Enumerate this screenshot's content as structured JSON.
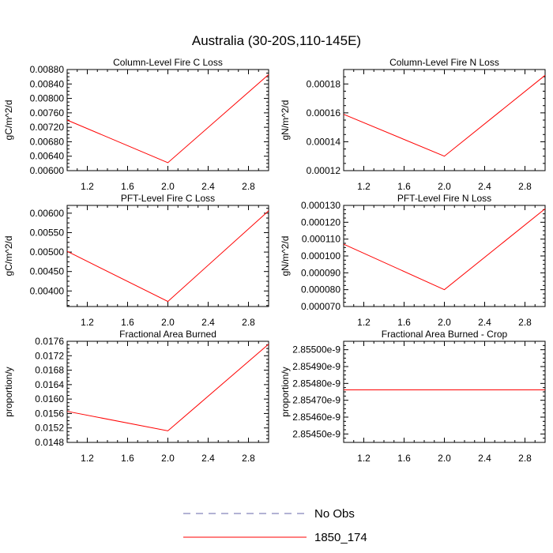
{
  "title": "Australia (30-20S,110-145E)",
  "colors": {
    "model": "#ff0000",
    "obs": "#6666aa",
    "axis": "#000000"
  },
  "legend": {
    "items": [
      "No Obs",
      "1850_174"
    ]
  },
  "chart_data": [
    {
      "type": "line",
      "title": "Column-Level Fire C Loss",
      "ylabel": "gC/m^2/d",
      "xlim": [
        1,
        3
      ],
      "xticks": [
        "1.2",
        "1.6",
        "2.0",
        "2.4",
        "2.8"
      ],
      "ylim": [
        0.006,
        0.0088
      ],
      "yticks": [
        "0.00600",
        "0.00640",
        "0.00680",
        "0.00720",
        "0.00760",
        "0.00800",
        "0.00840",
        "0.00880"
      ],
      "series": [
        {
          "name": "1850_174",
          "x": [
            1,
            2,
            3
          ],
          "y": [
            0.0074,
            0.00622,
            0.00866
          ]
        }
      ]
    },
    {
      "type": "line",
      "title": "Column-Level Fire N Loss",
      "ylabel": "gN/m^2/d",
      "xlim": [
        1,
        3
      ],
      "xticks": [
        "1.2",
        "1.6",
        "2.0",
        "2.4",
        "2.8"
      ],
      "ylim": [
        0.00012,
        0.00019
      ],
      "yticks": [
        "0.00012",
        "0.00014",
        "0.00016",
        "0.00018"
      ],
      "series": [
        {
          "name": "1850_174",
          "x": [
            1,
            2,
            3
          ],
          "y": [
            0.000159,
            0.00013,
            0.000186
          ]
        }
      ]
    },
    {
      "type": "line",
      "title": "PFT-Level Fire C Loss",
      "ylabel": "gC/m^2/d",
      "xlim": [
        1,
        3
      ],
      "xticks": [
        "1.2",
        "1.6",
        "2.0",
        "2.4",
        "2.8"
      ],
      "ylim": [
        0.0036,
        0.0062
      ],
      "yticks": [
        "0.00400",
        "0.00450",
        "0.00500",
        "0.00550",
        "0.00600"
      ],
      "series": [
        {
          "name": "1850_174",
          "x": [
            1,
            2,
            3
          ],
          "y": [
            0.00502,
            0.00373,
            0.00606
          ]
        }
      ]
    },
    {
      "type": "line",
      "title": "PFT-Level Fire N Loss",
      "ylabel": "gN/m^2/d",
      "xlim": [
        1,
        3
      ],
      "xticks": [
        "1.2",
        "1.6",
        "2.0",
        "2.4",
        "2.8"
      ],
      "ylim": [
        7e-05,
        0.00013
      ],
      "yticks": [
        "0.000070",
        "0.000080",
        "0.000090",
        "0.000100",
        "0.000110",
        "0.000120",
        "0.000130"
      ],
      "series": [
        {
          "name": "1850_174",
          "x": [
            1,
            2,
            3
          ],
          "y": [
            0.000107,
            8e-05,
            0.000128
          ]
        }
      ]
    },
    {
      "type": "line",
      "title": "Fractional Area Burned",
      "ylabel": "proportion/y",
      "xlim": [
        1,
        3
      ],
      "xticks": [
        "1.2",
        "1.6",
        "2.0",
        "2.4",
        "2.8"
      ],
      "ylim": [
        0.0148,
        0.0176
      ],
      "yticks": [
        "0.0148",
        "0.0152",
        "0.0156",
        "0.0160",
        "0.0164",
        "0.0168",
        "0.0172",
        "0.0176"
      ],
      "series": [
        {
          "name": "1850_174",
          "x": [
            1,
            2,
            3
          ],
          "y": [
            0.01566,
            0.01512,
            0.01752
          ]
        }
      ]
    },
    {
      "type": "line",
      "title": "Fractional Area Burned - Crop",
      "ylabel": "proportion/y",
      "xlim": [
        1,
        3
      ],
      "xticks": [
        "1.2",
        "1.6",
        "2.0",
        "2.4",
        "2.8"
      ],
      "ylim": [
        2.85445e-09,
        2.85505e-09
      ],
      "yticks": [
        "2.85450e-9",
        "2.85460e-9",
        "2.85470e-9",
        "2.85480e-9",
        "2.85490e-9",
        "2.85500e-9"
      ],
      "series": [
        {
          "name": "1850_174",
          "x": [
            1,
            2,
            3
          ],
          "y": [
            2.854762e-09,
            2.854762e-09,
            2.854762e-09
          ]
        }
      ]
    }
  ]
}
